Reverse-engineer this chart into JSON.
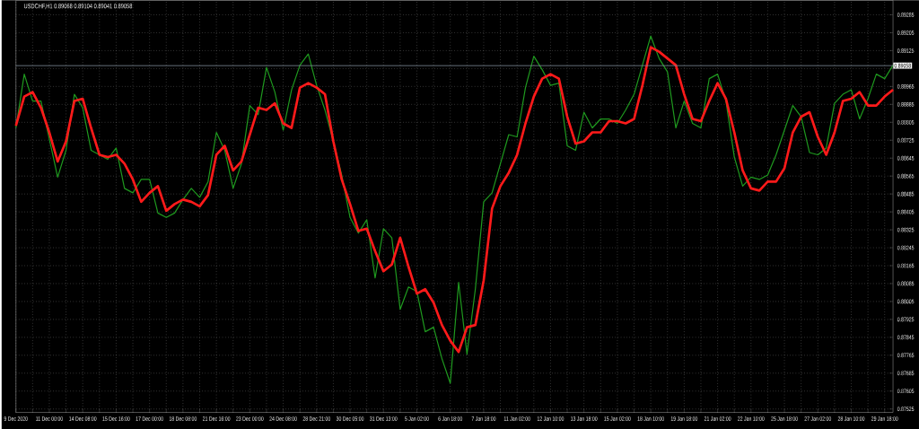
{
  "chart_data": {
    "type": "line",
    "title": "USDCHF,H1 0.89068 0.89104 0.89041 0.89058",
    "ylim": [
      0.8751,
      0.8935
    ],
    "categories": [
      "9 Dec 2020",
      null,
      null,
      null,
      "11 Dec 00:00",
      null,
      null,
      null,
      "14 Dec 08:00",
      null,
      null,
      null,
      "15 Dec 16:00",
      null,
      null,
      null,
      "17 Dec 00:00",
      null,
      null,
      null,
      "18 Dec 08:00",
      null,
      null,
      null,
      "21 Dec 16:00",
      null,
      null,
      null,
      "23 Dec 00:00",
      null,
      null,
      null,
      "24 Dec 08:00",
      null,
      null,
      null,
      "28 Dec 21:00",
      null,
      null,
      null,
      "30 Dec 05:00",
      null,
      null,
      null,
      "31 Dec 13:00",
      null,
      null,
      null,
      "5 Jan 02:00",
      null,
      null,
      null,
      "6 Jan 18:00",
      null,
      null,
      null,
      "7 Jan 18:00",
      null,
      null,
      null,
      "11 Jan 02:00",
      null,
      null,
      null,
      "12 Jan 10:00",
      null,
      null,
      null,
      "13 Jan 18:00",
      null,
      null,
      null,
      "15 Jan 02:00",
      null,
      null,
      null,
      "18 Jan 10:00",
      null,
      null,
      null,
      "19 Jan 18:00",
      null,
      null,
      null,
      "21 Jan 02:00",
      null,
      null,
      null,
      "22 Jan 10:00",
      null,
      null,
      null,
      "25 Jan 18:00",
      null,
      null,
      null,
      "27 Jan 02:00",
      null,
      null,
      null,
      "28 Jan 10:00",
      null,
      null,
      null,
      "29 Jan 18:00",
      null
    ],
    "yticks": [
      0.89285,
      0.89205,
      0.89125,
      {
        "value": 0.89045,
        "label": null
      },
      0.88965,
      0.88885,
      0.88805,
      0.88725,
      0.88645,
      0.88565,
      0.88485,
      0.88405,
      0.88325,
      0.88245,
      0.88165,
      0.88085,
      0.88005,
      0.87925,
      0.87845,
      0.87765,
      0.87685,
      0.87605,
      0.87525
    ],
    "grid": true,
    "marker": "none",
    "ref_lines": [
      {
        "axis": "y",
        "value": 0.89058,
        "label": "0.89058",
        "color": "#7f8a99"
      }
    ],
    "series": [
      {
        "color": "#1f9a1f",
        "values": [
          0.8878,
          0.8902,
          0.889,
          0.889,
          0.8873,
          0.8856,
          0.8868,
          0.8893,
          0.8887,
          0.8868,
          0.8866,
          0.8864,
          0.8869,
          0.8851,
          0.8849,
          0.8855,
          0.8855,
          0.884,
          0.8838,
          0.884,
          0.8846,
          0.8851,
          0.8847,
          0.8854,
          0.8876,
          0.8868,
          0.8851,
          0.8862,
          0.8888,
          0.8884,
          0.8905,
          0.8894,
          0.8877,
          0.8895,
          0.8906,
          0.8911,
          0.8897,
          0.8886,
          0.8872,
          0.8857,
          0.8838,
          0.8831,
          0.8837,
          0.8811,
          0.8833,
          0.8829,
          0.8797,
          0.8807,
          0.8805,
          0.8787,
          0.8789,
          0.8775,
          0.8764,
          0.8809,
          0.8777,
          0.8806,
          0.8845,
          0.8849,
          0.8862,
          0.8875,
          0.8874,
          0.8896,
          0.891,
          0.8904,
          0.8897,
          0.8898,
          0.887,
          0.8868,
          0.8885,
          0.8878,
          0.8882,
          0.8882,
          0.888,
          0.8886,
          0.8893,
          0.8906,
          0.8919,
          0.8909,
          0.8903,
          0.8878,
          0.889,
          0.888,
          0.8878,
          0.89,
          0.8902,
          0.889,
          0.8865,
          0.8852,
          0.8856,
          0.8855,
          0.8857,
          0.8866,
          0.8877,
          0.8888,
          0.8883,
          0.8867,
          0.8866,
          0.8869,
          0.8889,
          0.8893,
          0.8895,
          0.8882,
          0.8891,
          0.8902,
          0.89,
          0.8906
        ]
      },
      {
        "color": "#ff1a1a",
        "values": [
          0.8879,
          0.8892,
          0.8894,
          0.8887,
          0.8876,
          0.8863,
          0.8872,
          0.889,
          0.8891,
          0.8878,
          0.8866,
          0.8865,
          0.8866,
          0.8862,
          0.8855,
          0.8845,
          0.8849,
          0.8852,
          0.8841,
          0.8844,
          0.8846,
          0.8845,
          0.8843,
          0.8848,
          0.8866,
          0.887,
          0.8859,
          0.8863,
          0.8875,
          0.8887,
          0.8886,
          0.8889,
          0.888,
          0.8878,
          0.8896,
          0.8898,
          0.8896,
          0.8893,
          0.8872,
          0.8855,
          0.8844,
          0.8832,
          0.8833,
          0.8823,
          0.8814,
          0.8817,
          0.8829,
          0.8816,
          0.8804,
          0.8806,
          0.88,
          0.879,
          0.8783,
          0.8778,
          0.8789,
          0.879,
          0.881,
          0.8842,
          0.8852,
          0.8858,
          0.8866,
          0.888,
          0.8892,
          0.89,
          0.8902,
          0.89,
          0.8883,
          0.8871,
          0.8872,
          0.8876,
          0.8876,
          0.8881,
          0.8881,
          0.888,
          0.8882,
          0.8897,
          0.8914,
          0.8912,
          0.8909,
          0.8906,
          0.8893,
          0.8882,
          0.8881,
          0.889,
          0.8898,
          0.8891,
          0.8876,
          0.8859,
          0.8851,
          0.885,
          0.8854,
          0.8854,
          0.886,
          0.8876,
          0.8883,
          0.8885,
          0.8874,
          0.8866,
          0.8876,
          0.889,
          0.8891,
          0.8894,
          0.8888,
          0.8888,
          0.8892,
          0.8895
        ]
      }
    ]
  }
}
